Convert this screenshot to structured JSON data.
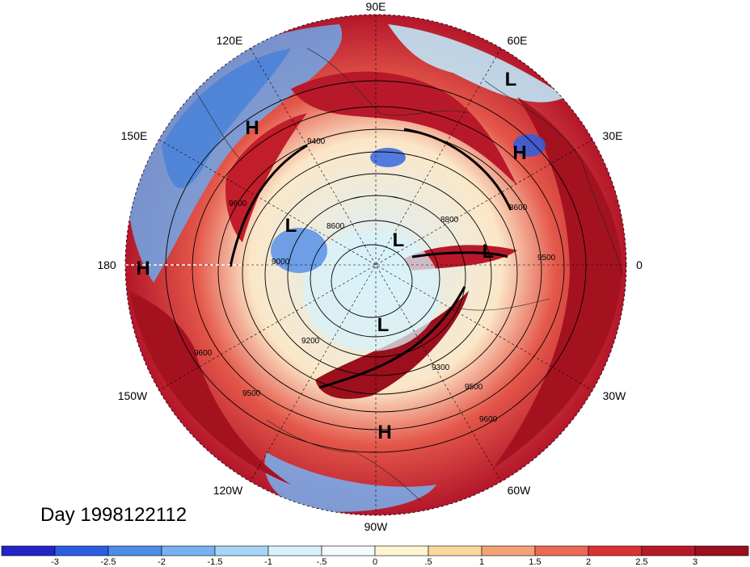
{
  "title": "Day 1998122112",
  "longitude_labels": {
    "top": "90E",
    "upper_left": "120E",
    "upper_right": "60E",
    "left_upper": "150E",
    "right_upper": "30E",
    "left": "180",
    "right": "0",
    "left_lower": "150W",
    "right_lower": "30W",
    "lower_left": "120W",
    "lower_right": "60W",
    "bottom": "90W"
  },
  "pressure_centers": [
    {
      "id": "h-150e",
      "letter": "H"
    },
    {
      "id": "h-180",
      "letter": "H"
    },
    {
      "id": "h-30e",
      "letter": "H"
    },
    {
      "id": "h-90w",
      "letter": "H"
    },
    {
      "id": "l-60e",
      "letter": "L"
    },
    {
      "id": "l-inner-left",
      "letter": "L"
    },
    {
      "id": "l-inner-center",
      "letter": "L"
    },
    {
      "id": "l-inner-right",
      "letter": "L"
    },
    {
      "id": "l-inner-lower",
      "letter": "L"
    }
  ],
  "contour_labels": [
    "9600",
    "9400",
    "8600",
    "9000",
    "9200",
    "9300",
    "9500",
    "9600",
    "9500",
    "9600",
    "8800",
    "9500",
    "8600"
  ],
  "colorbar": {
    "ticks": [
      "-3",
      "-2.5",
      "-2",
      "-1.5",
      "-1",
      "-.5",
      "0",
      ".5",
      "1",
      "1.5",
      "2",
      "2.5",
      "3"
    ],
    "colors": [
      "#2323c8",
      "#2b5fe0",
      "#4f8be8",
      "#77b1f2",
      "#a6d6f6",
      "#d7f2fa",
      "#f3fbfc",
      "#fff4d2",
      "#fbd89a",
      "#f4a377",
      "#eb6a55",
      "#db3332",
      "#b8192a",
      "#9c0f1c"
    ]
  },
  "palette": {
    "deep_red": "#a5121f",
    "red": "#d42b2f",
    "orange": "#ee7d5b",
    "cream": "#fff3d6",
    "light_blue": "#bfe6f7",
    "blue": "#4d8ee6"
  }
}
